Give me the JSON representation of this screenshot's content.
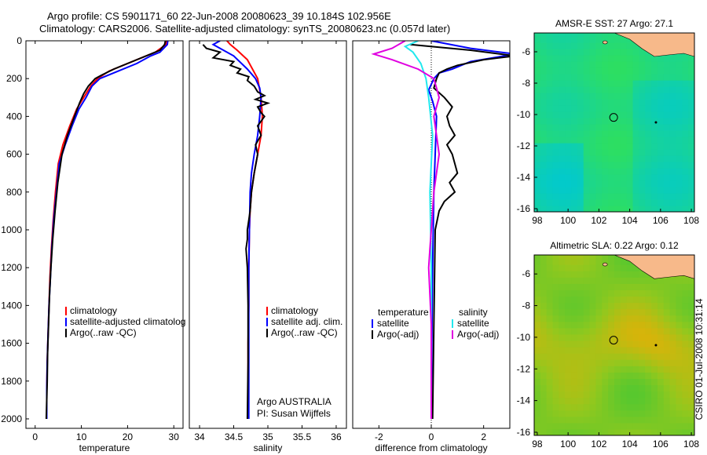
{
  "header": {
    "line1": "Argo profile: CS 5901171_60 22-Jun-2008 20080623_39 10.184S 102.956E",
    "line2": "Climatology: CARS2006. Satellite-adjusted climatology: synTS_20080623.nc (0.057d later)"
  },
  "side_text": "CSIRO 01-Jul-2008 10:31:14",
  "colors": {
    "red": "#ff0000",
    "blue": "#0000ff",
    "black": "#000000",
    "cyan": "#22e8ee",
    "magenta": "#e000e0",
    "land": "#f7b98a"
  },
  "chart_data": [
    {
      "type": "line",
      "xlabel": "temperature",
      "xlim": [
        -2,
        32
      ],
      "ylim": [
        2050,
        0
      ],
      "xticks": [
        0,
        10,
        20,
        30
      ],
      "yticks": [
        0,
        200,
        400,
        600,
        800,
        1000,
        1200,
        1400,
        1600,
        1800,
        2000
      ],
      "legend": [
        "climatology",
        "satellite-adjusted climatolog",
        "Argo(..raw -QC)"
      ],
      "series": [
        {
          "name": "climatology",
          "color": "#ff0000",
          "x": [
            28.5,
            28.3,
            26,
            24,
            20,
            16,
            13.5,
            12,
            10.5,
            9,
            7.5,
            6,
            5,
            4.4,
            3.9,
            3.5,
            3.2,
            3,
            2.8,
            2.6,
            2.5,
            2.5
          ],
          "y": [
            0,
            20,
            60,
            80,
            120,
            160,
            200,
            240,
            300,
            360,
            450,
            550,
            650,
            800,
            950,
            1100,
            1250,
            1400,
            1550,
            1700,
            1850,
            2000
          ]
        },
        {
          "name": "satellite-adjusted climatolog",
          "color": "#0000ff",
          "x": [
            28.7,
            28.6,
            27,
            25,
            22,
            18,
            14,
            12.3,
            11,
            9.5,
            8,
            6.5,
            5.2,
            4.6,
            4,
            3.6,
            3.3,
            3,
            2.8,
            2.6,
            2.5,
            2.5
          ],
          "y": [
            0,
            20,
            60,
            80,
            120,
            160,
            200,
            240,
            300,
            360,
            450,
            550,
            650,
            800,
            950,
            1100,
            1250,
            1400,
            1550,
            1700,
            1850,
            2000
          ]
        },
        {
          "name": "Argo(..raw -QC)",
          "color": "#000000",
          "x": [
            28.2,
            28,
            27,
            25,
            21,
            17,
            14.5,
            13,
            11.5,
            10.5,
            9.6,
            8.5,
            7,
            5.8,
            4.9,
            4.3,
            3.8,
            3.4,
            3.1,
            2.9,
            2.7,
            2.6,
            2.5,
            2.4
          ],
          "y": [
            0,
            20,
            50,
            70,
            110,
            150,
            180,
            200,
            240,
            280,
            330,
            400,
            500,
            600,
            750,
            900,
            1050,
            1200,
            1350,
            1500,
            1650,
            1800,
            1900,
            2000
          ]
        }
      ]
    },
    {
      "type": "line",
      "xlabel": "salinity",
      "xlim": [
        33.85,
        36.15
      ],
      "ylim": [
        2050,
        0
      ],
      "xticks": [
        34,
        34.5,
        35,
        35.5,
        36
      ],
      "legend": [
        "climatology",
        "satellite adj. clim.",
        "Argo(..raw -QC)"
      ],
      "annotation": [
        "Argo AUSTRALIA",
        "PI: Susan Wijffels"
      ],
      "series": [
        {
          "name": "climatology",
          "color": "#ff0000",
          "x": [
            34.4,
            34.45,
            34.55,
            34.7,
            34.85,
            34.9,
            34.92,
            34.9,
            34.85,
            34.8,
            34.76,
            34.74,
            34.73,
            34.72,
            34.72,
            34.71,
            34.71,
            34.71,
            34.71
          ],
          "y": [
            0,
            20,
            50,
            100,
            200,
            300,
            400,
            500,
            600,
            700,
            800,
            900,
            1000,
            1200,
            1400,
            1600,
            1800,
            1900,
            2000
          ]
        },
        {
          "name": "satellite adj. clim.",
          "color": "#0000ff",
          "x": [
            34.3,
            34.2,
            34.3,
            34.5,
            34.7,
            34.82,
            34.88,
            34.9,
            34.88,
            34.85,
            34.8,
            34.76,
            34.74,
            34.73,
            34.72,
            34.72,
            34.72,
            34.72
          ],
          "y": [
            0,
            20,
            40,
            80,
            150,
            200,
            250,
            300,
            400,
            500,
            600,
            700,
            800,
            1000,
            1200,
            1400,
            1700,
            2000
          ]
        },
        {
          "name": "Argo(..raw -QC)",
          "color": "#000000",
          "x": [
            34.05,
            34.1,
            34.3,
            34.2,
            34.5,
            34.45,
            34.6,
            34.55,
            34.72,
            34.7,
            34.8,
            34.85,
            34.95,
            34.82,
            35.0,
            34.85,
            34.9,
            34.95,
            34.85,
            34.9,
            34.82,
            34.85,
            34.8,
            34.76,
            34.74,
            34.72,
            34.7,
            34.7,
            34.68,
            34.7,
            34.71,
            34.71,
            34.7
          ],
          "y": [
            20,
            40,
            60,
            90,
            110,
            130,
            150,
            170,
            190,
            210,
            240,
            270,
            290,
            310,
            330,
            350,
            380,
            400,
            450,
            500,
            550,
            600,
            700,
            800,
            900,
            950,
            1000,
            1050,
            1100,
            1200,
            1400,
            1700,
            2000
          ]
        }
      ]
    },
    {
      "type": "line",
      "xlabel": "difference from climatology",
      "xlim": [
        -3,
        3
      ],
      "ylim": [
        2050,
        0
      ],
      "xticks": [
        -2,
        0,
        2
      ],
      "legend": {
        "left_header": "temperature",
        "right_header": "salinity",
        "left": [
          "satellite",
          "Argo(-adj)"
        ],
        "right": [
          "satellite",
          "Argo(-adj)"
        ]
      },
      "series": [
        {
          "name": "temperature satellite",
          "color": "#0000ff",
          "x": [
            0,
            1.5,
            3.2,
            1.5,
            0.8,
            0.3,
            0.1,
            -0.1,
            0.05,
            0.2,
            0.15,
            0.1,
            0.05,
            0.02,
            0.0
          ],
          "y": [
            0,
            40,
            70,
            110,
            150,
            170,
            200,
            260,
            320,
            400,
            600,
            800,
            1200,
            1600,
            2000
          ]
        },
        {
          "name": "temperature Argo(-adj)",
          "color": "#000000",
          "x": [
            -0.8,
            1.5,
            3.2,
            2.0,
            1.0,
            0.6,
            0.3,
            0.2,
            0.1,
            0.5,
            0.8,
            0.6,
            0.7,
            0.9,
            0.6,
            0.8,
            1.0,
            0.7,
            0.9,
            0.5,
            0.3,
            0.15,
            0.1,
            0.05
          ],
          "y": [
            20,
            50,
            80,
            100,
            130,
            150,
            170,
            200,
            250,
            300,
            350,
            400,
            450,
            500,
            550,
            600,
            700,
            750,
            800,
            850,
            900,
            1000,
            1500,
            2000
          ]
        },
        {
          "name": "salinity satellite",
          "color": "#22e8ee",
          "x": [
            -0.5,
            -1.0,
            -0.7,
            -0.4,
            -0.2,
            -0.1,
            0.05,
            -0.05,
            0.0,
            0.0
          ],
          "y": [
            0,
            30,
            60,
            120,
            200,
            300,
            500,
            800,
            1200,
            2000
          ]
        },
        {
          "name": "salinity Argo(-adj)",
          "color": "#e000e0",
          "x": [
            -1.0,
            -1.5,
            -2.2,
            -1.5,
            -0.5,
            0.1,
            0.2,
            0.3,
            0.1,
            0.2,
            0.3,
            0.1,
            0.0,
            -0.05,
            -0.1,
            0.0,
            0.0
          ],
          "y": [
            0,
            40,
            70,
            100,
            150,
            200,
            250,
            300,
            400,
            500,
            600,
            800,
            1000,
            1100,
            1200,
            1500,
            2000
          ]
        }
      ]
    },
    {
      "type": "heatmap",
      "title": "AMSR-E SST: 27 Argo: 27.1",
      "xlim": [
        97.8,
        108.2
      ],
      "ylim": [
        -16.2,
        -4.8
      ],
      "xticks": [
        98,
        100,
        102,
        104,
        106,
        108
      ],
      "yticks": [
        -6,
        -8,
        -10,
        -12,
        -14,
        -16
      ],
      "argo_position": {
        "lon": 102.956,
        "lat": -10.184
      }
    },
    {
      "type": "heatmap",
      "title": "Altimetric SLA: 0.22 Argo: 0.12",
      "xlim": [
        97.8,
        108.2
      ],
      "ylim": [
        -16.2,
        -4.8
      ],
      "xticks": [
        98,
        100,
        102,
        104,
        106,
        108
      ],
      "yticks": [
        -6,
        -8,
        -10,
        -12,
        -14,
        -16
      ],
      "argo_position": {
        "lon": 102.956,
        "lat": -10.184
      }
    }
  ]
}
